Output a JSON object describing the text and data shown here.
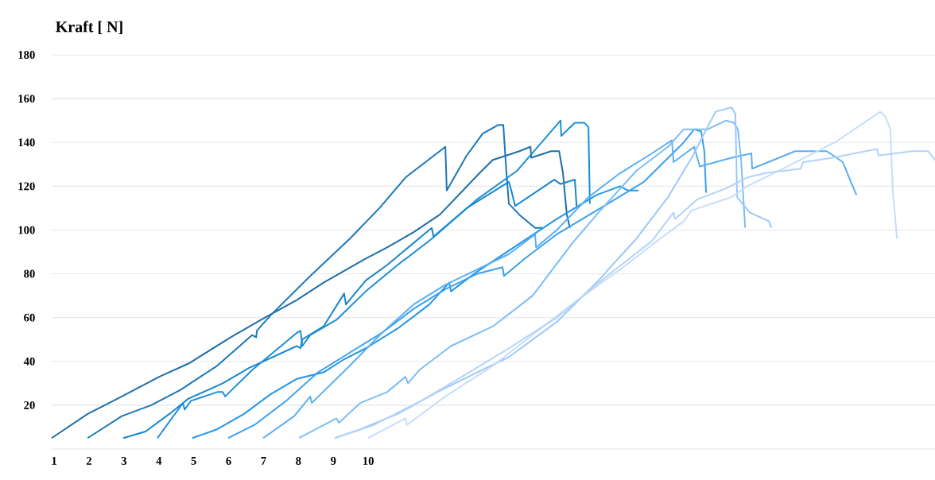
{
  "chart_data": {
    "type": "line",
    "ylabel": "Kraft [ N]",
    "grid": "y",
    "xlim": [
      0.93,
      26.24
    ],
    "ylim": [
      0,
      180
    ],
    "xticks": [
      1,
      2,
      3,
      4,
      5,
      6,
      7,
      8,
      9,
      10
    ],
    "yticks": [
      {
        "value": 0,
        "label": null
      },
      20,
      40,
      60,
      80,
      100,
      120,
      140,
      160,
      180
    ],
    "series": [
      {
        "color": "#1f6fa8",
        "x": [
          0.93,
          1.96,
          2.94,
          4.01,
          4.85,
          6.06,
          7.04,
          7.95,
          8.72,
          9.93,
          10.54,
          11.3,
          12.05,
          13.19,
          13.57,
          14.33,
          14.65,
          14.67,
          15.24,
          15.47,
          15.58,
          15.69,
          15.78
        ],
        "values": [
          5,
          16,
          24,
          33,
          39,
          51,
          60,
          68,
          76,
          87,
          92,
          99,
          107,
          126,
          132,
          136,
          138,
          133,
          136,
          136,
          126,
          107,
          101
        ]
      },
      {
        "color": "#1a78b8",
        "x": [
          1.96,
          2.94,
          3.78,
          4.62,
          5.67,
          6.67,
          6.79,
          6.81,
          7.2,
          8.34,
          9.47,
          10.32,
          11.07,
          12.21,
          12.25,
          12.82,
          13.28,
          13.73,
          13.87,
          13.96,
          14.03,
          14.33,
          14.78,
          14.99
        ],
        "values": [
          5,
          15,
          20,
          27,
          38,
          52,
          51,
          54,
          61,
          79,
          96,
          110,
          124,
          138,
          118,
          134,
          144,
          148,
          148,
          126,
          112,
          107,
          101,
          101
        ]
      },
      {
        "color": "#1a86cc",
        "x": [
          2.98,
          3.62,
          4.3,
          4.85,
          5.83,
          6.58,
          7.95,
          8.06,
          8.11,
          8.72,
          9.31,
          9.36,
          9.93,
          10.54,
          11.82,
          11.87,
          12.82,
          14.03,
          14.1,
          14.21,
          15.33,
          15.51,
          15.92,
          15.97
        ],
        "values": [
          5,
          8,
          16,
          23,
          30,
          37,
          47,
          46,
          50,
          56,
          71,
          66,
          77,
          84,
          101,
          97,
          110,
          122,
          118,
          111,
          123,
          121,
          123,
          111
        ]
      },
      {
        "color": "#1a8fd8",
        "x": [
          3.96,
          4.69,
          4.74,
          4.92,
          5.67,
          5.83,
          5.9,
          6.67,
          7.95,
          8.06,
          8.11,
          8.34,
          9.09,
          9.93,
          10.84,
          11.82,
          13.12,
          14.26,
          15.51,
          15.53,
          15.92,
          16.19,
          16.31,
          16.35
        ],
        "values": [
          5,
          21,
          18,
          22,
          26,
          26,
          24,
          36,
          53,
          54,
          47,
          52,
          59,
          72,
          84,
          96,
          114,
          127,
          150,
          143,
          149,
          149,
          147,
          112
        ]
      },
      {
        "color": "#2196e6",
        "x": [
          4.96,
          5.67,
          6.44,
          7.2,
          7.95,
          8.72,
          9.31,
          9.93,
          10.84,
          11.75,
          12.32,
          12.37,
          13.12,
          14.26,
          15.4,
          16.54,
          17.22,
          17.45,
          17.74
        ],
        "values": [
          5,
          9,
          16,
          25,
          32,
          35,
          41,
          46,
          55,
          66,
          76,
          72,
          81,
          93,
          105,
          116,
          120,
          118,
          118
        ]
      },
      {
        "color": "#3ba0f0",
        "x": [
          5.99,
          6.74,
          7.65,
          8.56,
          9.47,
          10.39,
          11.3,
          12.21,
          13.12,
          13.85,
          13.89,
          14.49,
          15.4,
          16.76,
          17.9,
          19.04,
          19.34,
          19.54,
          19.63,
          19.68
        ],
        "values": [
          5,
          11,
          22,
          35,
          44,
          53,
          64,
          73,
          80,
          83,
          79,
          87,
          98,
          111,
          122,
          140,
          146,
          145,
          136,
          117
        ]
      },
      {
        "color": "#5aaef5",
        "x": [
          6.99,
          7.88,
          8.34,
          8.38,
          9.47,
          10.39,
          11.3,
          12.21,
          13.12,
          14.03,
          14.78,
          14.81,
          15.4,
          16.31,
          17.22,
          18.13,
          18.7,
          18.75,
          19.34,
          19.5,
          20.41,
          20.98,
          21.0,
          22.23,
          23.14,
          23.6,
          23.83,
          23.99
        ],
        "values": [
          5,
          15,
          24,
          21,
          38,
          53,
          66,
          75,
          82,
          89,
          98,
          92,
          100,
          115,
          126,
          135,
          141,
          131,
          138,
          129,
          133,
          135,
          128,
          136,
          136,
          131,
          122,
          116
        ]
      },
      {
        "color": "#7dbdf7",
        "x": [
          8.02,
          9.09,
          9.16,
          9.77,
          10.54,
          11.07,
          11.14,
          11.46,
          12.37,
          13.57,
          14.71,
          15.85,
          16.6,
          17.68,
          18.59,
          19.04,
          19.38,
          19.73,
          20.25,
          20.48,
          20.59,
          20.68,
          20.8
        ],
        "values": [
          5,
          14,
          12,
          21,
          26,
          33,
          30,
          36,
          47,
          56,
          70,
          94,
          108,
          127,
          138,
          146,
          146,
          146,
          150,
          149,
          146,
          133,
          101
        ]
      },
      {
        "color": "#9cc8f8",
        "x": [
          9.04,
          9.77,
          10.84,
          11.98,
          13.12,
          14.03,
          15.4,
          16.54,
          17.68,
          18.59,
          19.27,
          19.95,
          20.41,
          20.52,
          20.57,
          20.93,
          21.48,
          21.55
        ],
        "values": [
          5,
          9,
          16,
          26,
          35,
          42,
          58,
          76,
          96,
          115,
          133,
          154,
          156,
          153,
          115,
          108,
          104,
          101
        ]
      },
      {
        "color": "#c6ddfb",
        "x": [
          10.0,
          11.07,
          11.11,
          12.21,
          13.57,
          14.94,
          16.08,
          17.22,
          18.36,
          19.04,
          19.27,
          20.41,
          20.86,
          22.0,
          23.37,
          24.67,
          24.81,
          24.96,
          25.03,
          25.15
        ],
        "values": [
          5,
          14,
          11,
          24,
          38,
          55,
          69,
          82,
          96,
          104,
          109,
          115,
          120,
          129,
          140,
          154,
          152,
          146,
          118,
          96
        ]
      },
      {
        "color": "#b2d3fa",
        "x": [
          9.04,
          10.16,
          11.52,
          12.89,
          14.03,
          15.4,
          16.76,
          18.13,
          18.75,
          18.79,
          19.43,
          20.25,
          20.86,
          21.39,
          22.39,
          22.46,
          23.3,
          24.58,
          24.62,
          25.58,
          26.04,
          26.24
        ],
        "values": [
          5,
          11,
          22,
          35,
          46,
          60,
          78,
          95,
          108,
          105,
          114,
          119,
          124,
          126,
          128,
          131,
          133,
          137,
          134,
          136,
          136,
          132
        ]
      }
    ]
  }
}
